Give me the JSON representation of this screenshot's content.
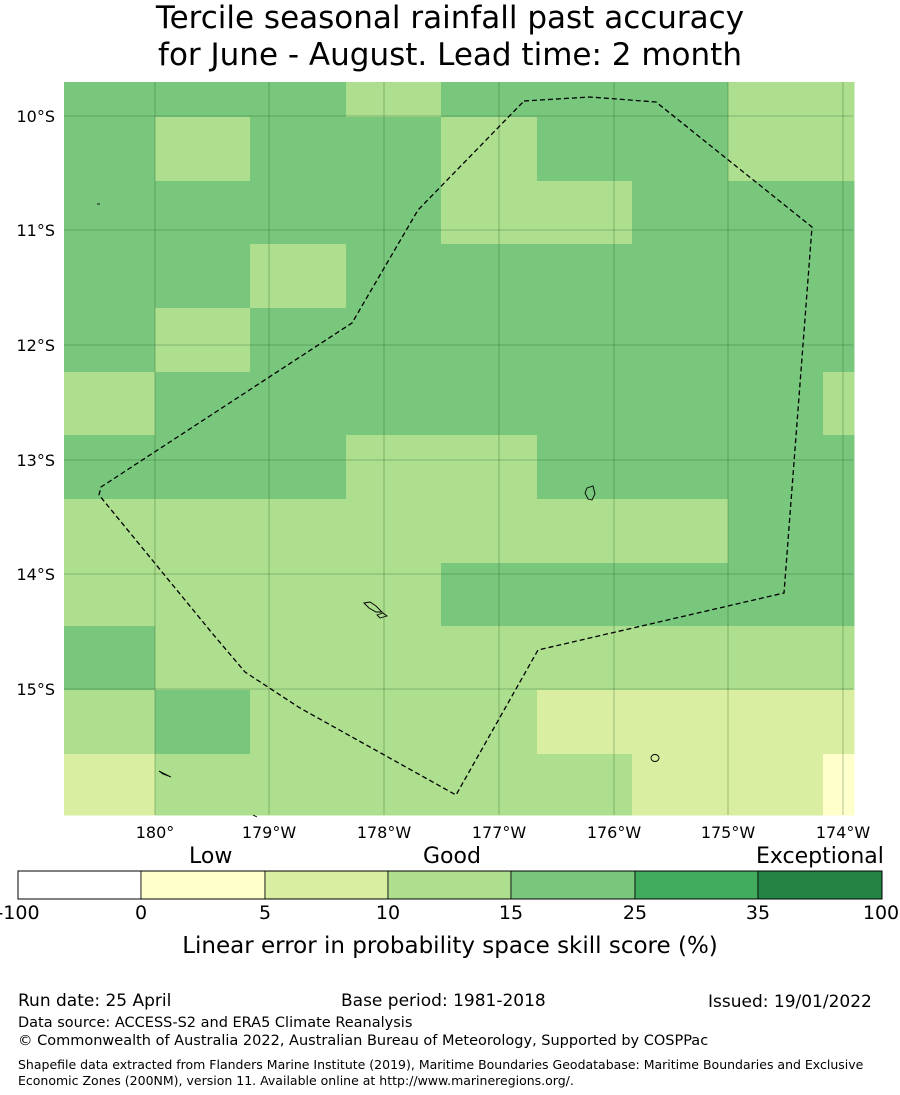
{
  "title": {
    "line1": "Tercile seasonal rainfall past accuracy",
    "line2": "for June - August. Lead time: 2 month"
  },
  "map": {
    "lat_labels": [
      "10°S",
      "11°S",
      "12°S",
      "13°S",
      "14°S",
      "15°S"
    ],
    "lon_labels": [
      "180°",
      "179°W",
      "178°W",
      "177°W",
      "176°W",
      "175°W",
      "174°W"
    ],
    "category_colors": {
      "c5_10": "#d9eea0",
      "c10_15": "#addf8e",
      "c15_25": "#78c77c",
      "c0_5": "#ffffcc"
    },
    "grid": [
      [
        "c15_25",
        "c15_25",
        "c15_25",
        "c10_15",
        "c15_25",
        "c15_25",
        "c15_25",
        "c10_15",
        "c10_15"
      ],
      [
        "c15_25",
        "c10_15",
        "c15_25",
        "c15_25",
        "c10_15",
        "c15_25",
        "c15_25",
        "c10_15",
        "c10_15"
      ],
      [
        "c15_25",
        "c15_25",
        "c15_25",
        "c15_25",
        "c10_15",
        "c10_15",
        "c15_25",
        "c15_25",
        "c15_25"
      ],
      [
        "c15_25",
        "c15_25",
        "c10_15",
        "c15_25",
        "c15_25",
        "c15_25",
        "c15_25",
        "c15_25",
        "c15_25"
      ],
      [
        "c15_25",
        "c10_15",
        "c15_25",
        "c15_25",
        "c15_25",
        "c15_25",
        "c15_25",
        "c15_25",
        "c15_25"
      ],
      [
        "c10_15",
        "c15_25",
        "c15_25",
        "c15_25",
        "c15_25",
        "c15_25",
        "c15_25",
        "c15_25",
        "c10_15"
      ],
      [
        "c15_25",
        "c15_25",
        "c15_25",
        "c10_15",
        "c10_15",
        "c15_25",
        "c15_25",
        "c15_25",
        "c15_25"
      ],
      [
        "c10_15",
        "c10_15",
        "c10_15",
        "c10_15",
        "c10_15",
        "c10_15",
        "c10_15",
        "c15_25",
        "c15_25"
      ],
      [
        "c10_15",
        "c10_15",
        "c10_15",
        "c10_15",
        "c15_25",
        "c15_25",
        "c15_25",
        "c15_25",
        "c15_25"
      ],
      [
        "c15_25",
        "c10_15",
        "c10_15",
        "c10_15",
        "c10_15",
        "c10_15",
        "c10_15",
        "c10_15",
        "c10_15"
      ],
      [
        "c10_15",
        "c15_25",
        "c10_15",
        "c10_15",
        "c10_15",
        "c5_10",
        "c5_10",
        "c5_10",
        "c5_10"
      ],
      [
        "c5_10",
        "c10_15",
        "c10_15",
        "c10_15",
        "c10_15",
        "c10_15",
        "c5_10",
        "c5_10",
        "c0_5"
      ]
    ]
  },
  "colorbar": {
    "words": {
      "low": "Low",
      "good": "Good",
      "exceptional": "Exceptional"
    },
    "ticks": [
      "-100",
      "0",
      "5",
      "10",
      "15",
      "25",
      "35",
      "100"
    ],
    "colors": [
      "#ffffff",
      "#ffffcc",
      "#d9eea0",
      "#addf8e",
      "#78c77c",
      "#41ab5d",
      "#238443"
    ],
    "label": "Linear error in probability space skill score (%)"
  },
  "footer": {
    "run_date": "Run date: 25 April",
    "base_period": "Base period: 1981-2018",
    "issued": "Issued: 19/01/2022",
    "data_source": "Data source: ACCESS-S2 and ERA5 Climate Reanalysis",
    "copyright": "© Commonwealth of Australia 2022, Australian Bureau of Meteorology, Supported by COSPPac",
    "shapefile": "Shapefile data extracted from Flanders Marine Institute (2019), Maritime Boundaries Geodatabase: Maritime Boundaries and Exclusive Economic Zones (200NM), version 11. Available online at http://www.marineregions.org/."
  }
}
